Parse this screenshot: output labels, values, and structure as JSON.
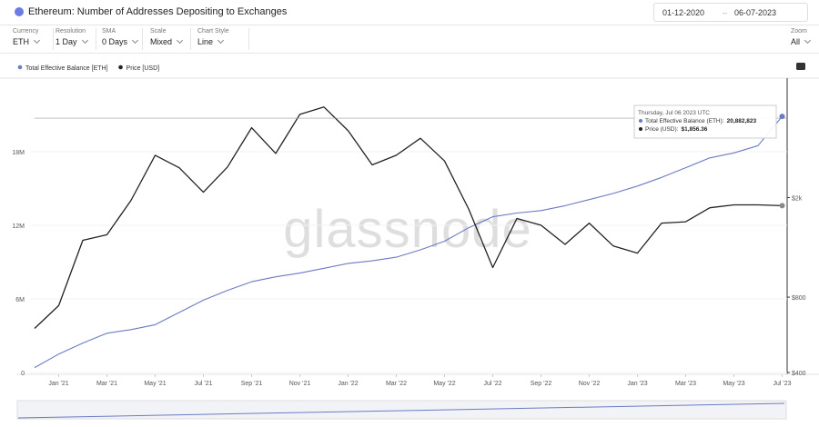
{
  "header": {
    "title": "Ethereum: Number of Addresses Depositing to Exchanges",
    "date_from": "01-12-2020",
    "date_to": "06-07-2023"
  },
  "controls": [
    {
      "label": "Currency",
      "value": "ETH"
    },
    {
      "label": "Resolution",
      "value": "1 Day"
    },
    {
      "label": "SMA",
      "value": "0 Days"
    },
    {
      "label": "Scale",
      "value": "Mixed"
    },
    {
      "label": "Chart Style",
      "value": "Line"
    }
  ],
  "zoom": {
    "label": "Zoom",
    "value": "All"
  },
  "watermark": "glassnode",
  "tooltip": {
    "date": "Thursday, Jul 06 2023 UTC",
    "lines": [
      {
        "label": "Total Effective Balance (ETH):",
        "value": "20,882,823"
      },
      {
        "label": "Price (USD):",
        "value": "$1,856.36"
      }
    ]
  },
  "chart_data": {
    "type": "line",
    "x": [
      "2020-12",
      "2021-01",
      "2021-02",
      "2021-03",
      "2021-04",
      "2021-05",
      "2021-06",
      "2021-07",
      "2021-08",
      "2021-09",
      "2021-10",
      "2021-11",
      "2021-12",
      "2022-01",
      "2022-02",
      "2022-03",
      "2022-04",
      "2022-05",
      "2022-06",
      "2022-07",
      "2022-08",
      "2022-09",
      "2022-10",
      "2022-11",
      "2022-12",
      "2023-01",
      "2023-02",
      "2023-03",
      "2023-04",
      "2023-05",
      "2023-06",
      "2023-07"
    ],
    "series": [
      {
        "name": "Total Effective Balance [ETH]",
        "color": "#6b7bc4",
        "axis": "y",
        "values": [
          400000,
          1500000,
          2400000,
          3200000,
          3500000,
          3900000,
          4900000,
          5900000,
          6700000,
          7400000,
          7800000,
          8100000,
          8500000,
          8900000,
          9100000,
          9400000,
          10000000,
          10700000,
          11800000,
          12700000,
          13000000,
          13200000,
          13600000,
          14100000,
          14600000,
          15200000,
          15900000,
          16700000,
          17500000,
          17900000,
          18500000,
          20882823
        ]
      },
      {
        "name": "Price [USD]",
        "color": "#222222",
        "axis": "y2",
        "values": [
          600,
          740,
          1350,
          1420,
          1950,
          2950,
          2630,
          2100,
          2650,
          3800,
          3000,
          4300,
          4600,
          3700,
          2700,
          2950,
          3450,
          2800,
          1800,
          1050,
          1650,
          1550,
          1300,
          1580,
          1280,
          1200,
          1580,
          1600,
          1820,
          1870,
          1870,
          1856
        ]
      }
    ],
    "xlim": [
      "2020-12",
      "2023-07"
    ],
    "xticks": [
      {
        "value": "2021-01",
        "label": "Jan '21"
      },
      {
        "value": "2021-03",
        "label": "Mar '21"
      },
      {
        "value": "2021-05",
        "label": "May '21"
      },
      {
        "value": "2021-07",
        "label": "Jul '21"
      },
      {
        "value": "2021-09",
        "label": "Sep '21"
      },
      {
        "value": "2021-11",
        "label": "Nov '21"
      },
      {
        "value": "2022-01",
        "label": "Jan '22"
      },
      {
        "value": "2022-03",
        "label": "Mar '22"
      },
      {
        "value": "2022-05",
        "label": "May '22"
      },
      {
        "value": "2022-07",
        "label": "Jul '22"
      },
      {
        "value": "2022-09",
        "label": "Sep '22"
      },
      {
        "value": "2022-11",
        "label": "Nov '22"
      },
      {
        "value": "2023-01",
        "label": "Jan '23"
      },
      {
        "value": "2023-03",
        "label": "Mar '23"
      },
      {
        "value": "2023-05",
        "label": "May '23"
      },
      {
        "value": "2023-07",
        "label": "Jul '23"
      }
    ],
    "ylim": [
      0,
      24000000
    ],
    "yticks": [
      0,
      {
        "value": 6000000,
        "label": "6M"
      },
      {
        "value": 12000000,
        "label": "12M"
      },
      {
        "value": 18000000,
        "label": "18M"
      }
    ],
    "y2lim": [
      400,
      6000
    ],
    "y2scale": "log",
    "y2ticks": [
      {
        "value": 400,
        "label": "$400"
      },
      {
        "value": 800,
        "label": "$800"
      },
      {
        "value": 2000,
        "label": "$2k"
      }
    ],
    "legend": "top-left"
  }
}
